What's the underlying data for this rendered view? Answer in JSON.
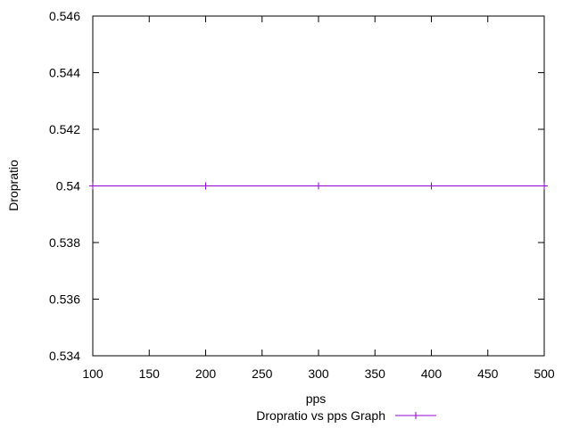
{
  "chart_data": {
    "type": "line",
    "title": "",
    "xlabel": "pps",
    "ylabel": "Dropratio",
    "xlim": [
      100,
      500
    ],
    "ylim": [
      0.534,
      0.546
    ],
    "xticks": [
      100,
      150,
      200,
      250,
      300,
      350,
      400,
      450,
      500
    ],
    "xtick_labels": [
      "100",
      "150",
      "200",
      "250",
      "300",
      "350",
      "400",
      "450",
      "500"
    ],
    "yticks": [
      0.534,
      0.536,
      0.538,
      0.54,
      0.542,
      0.544,
      0.546
    ],
    "ytick_labels": [
      "0.534",
      "0.536",
      "0.538",
      "0.54",
      "0.542",
      "0.544",
      "0.546"
    ],
    "grid": false,
    "legend_position": "bottom-center",
    "series": [
      {
        "name": "Dropratio vs pps Graph",
        "color": "#9400d3",
        "marker": "plus",
        "x": [
          100,
          200,
          300,
          400,
          500
        ],
        "y": [
          0.54,
          0.54,
          0.54,
          0.54,
          0.54
        ]
      }
    ]
  }
}
